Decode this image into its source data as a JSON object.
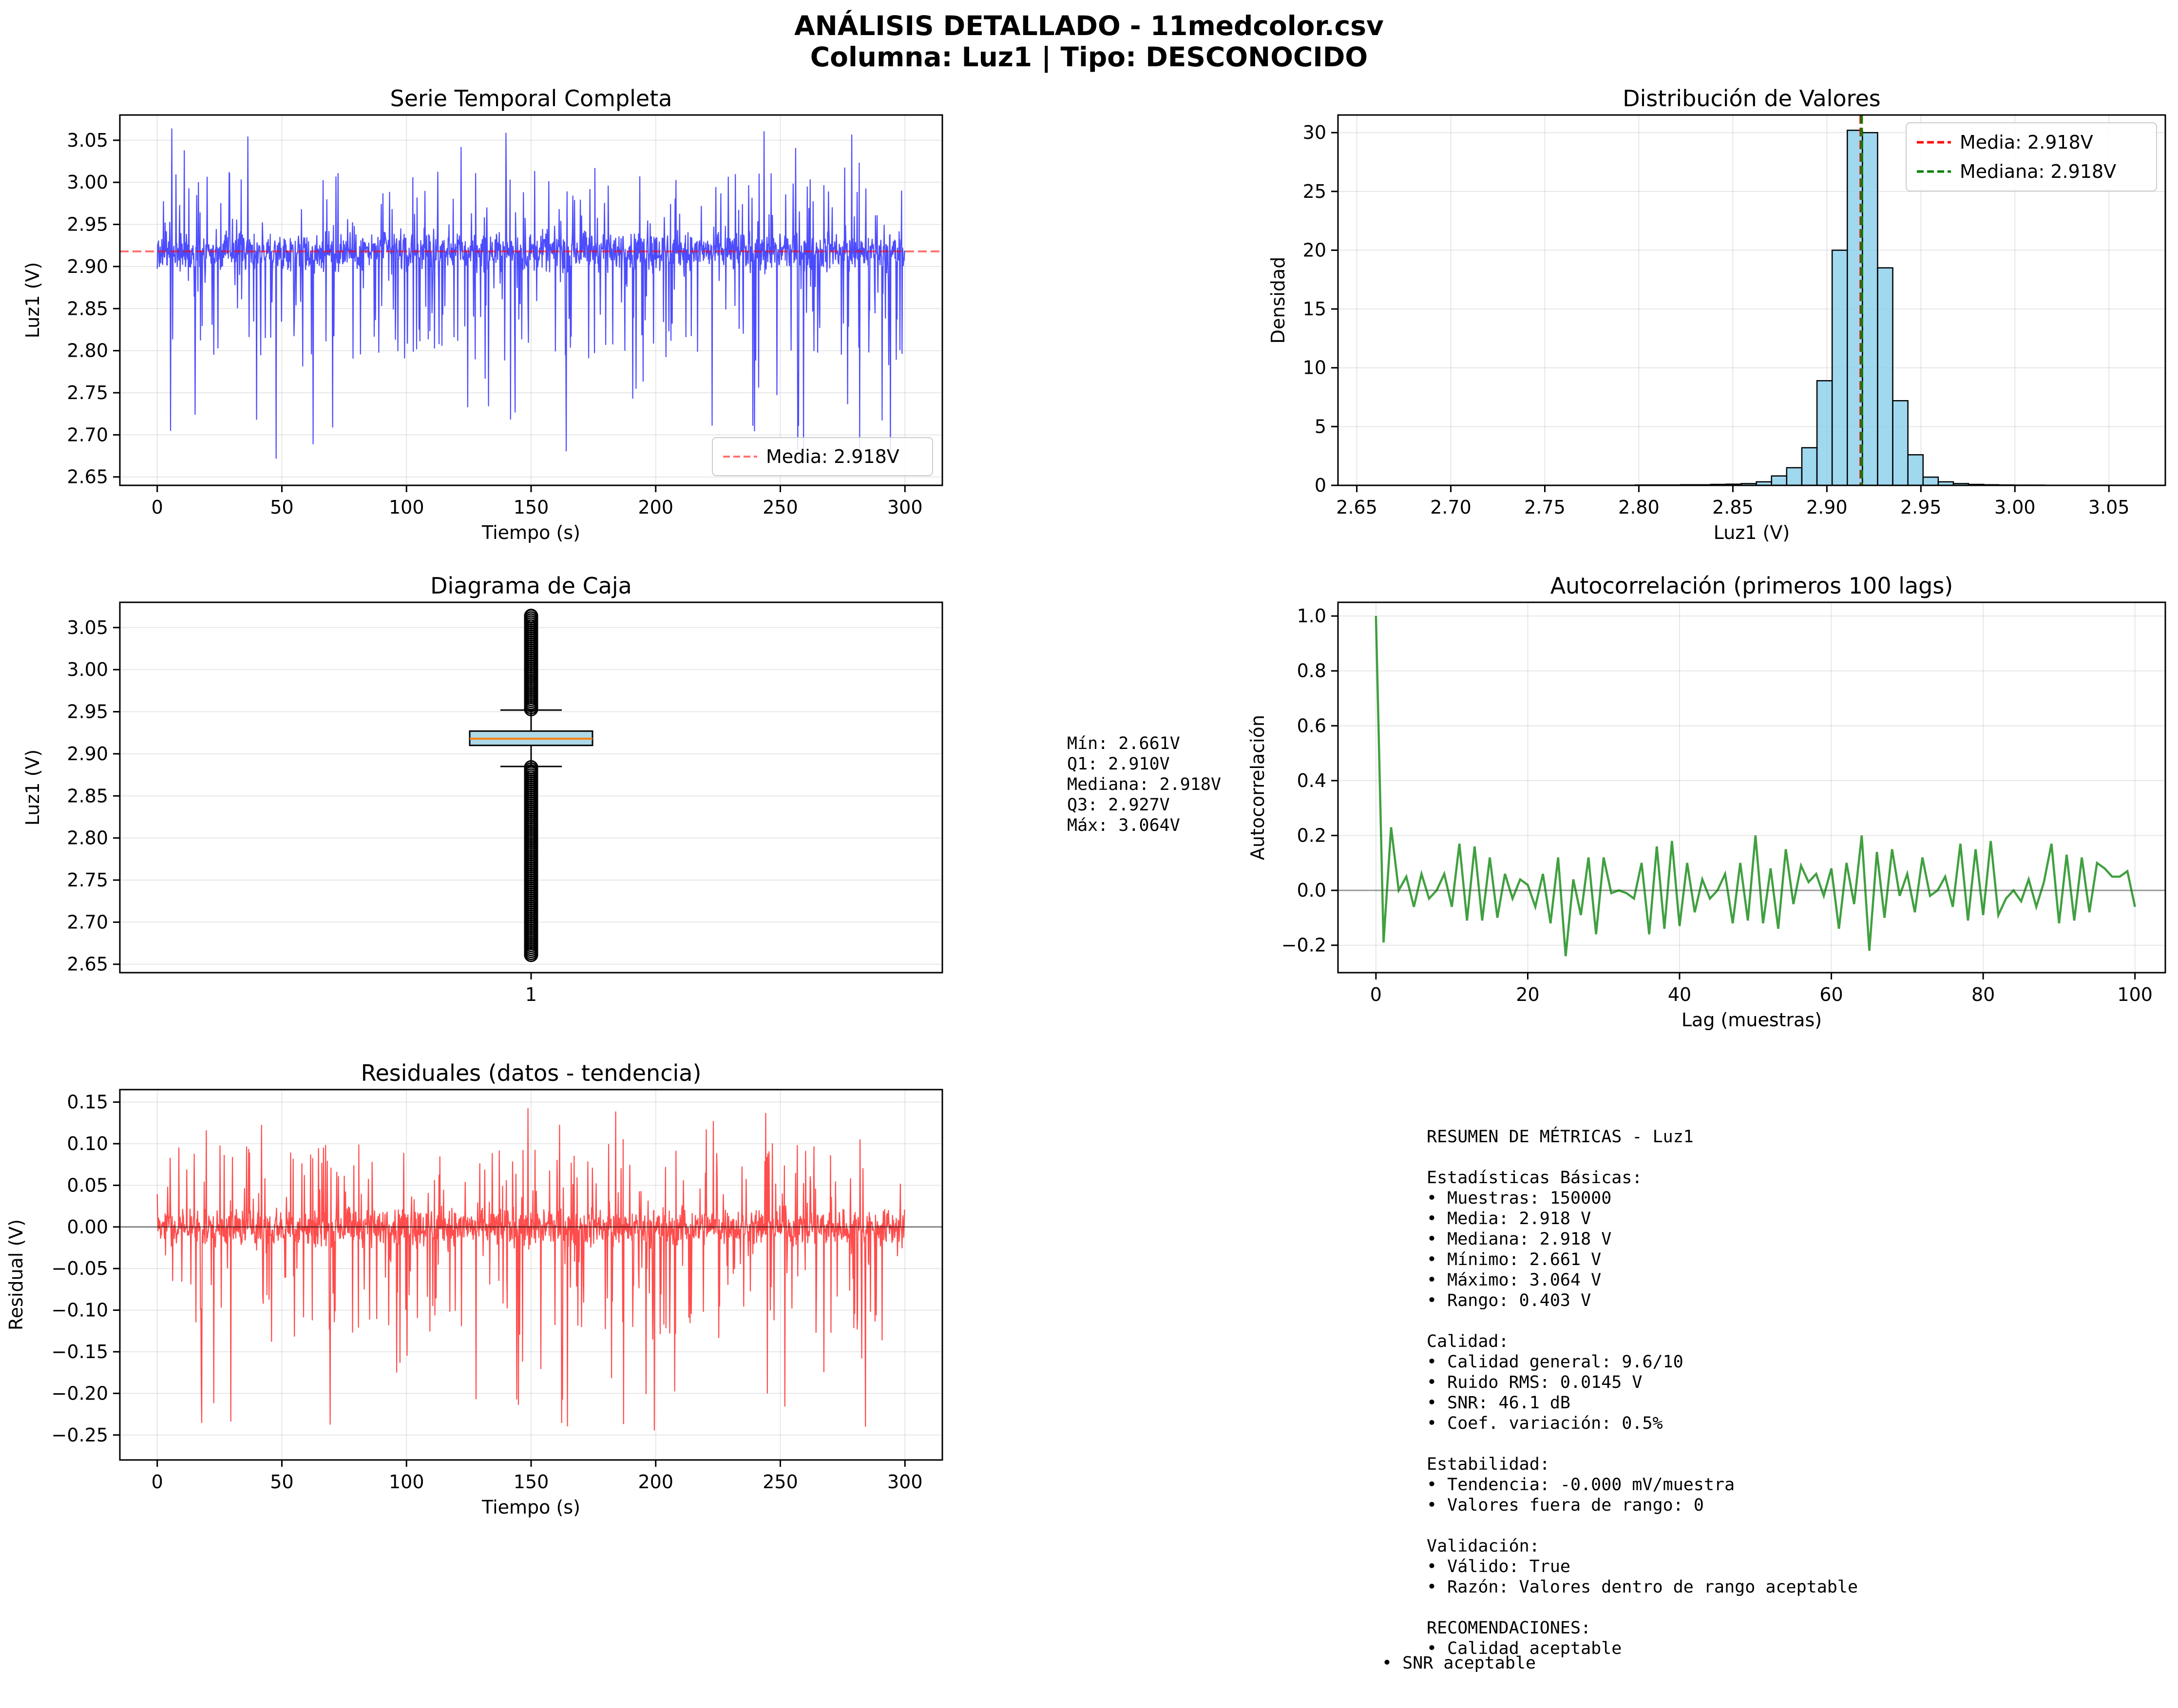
{
  "figure": {
    "title_line1": "ANÁLISIS DETALLADO - 11medcolor.csv",
    "title_line2": "Columna: Luz1 | Tipo: DESCONOCIDO"
  },
  "chart_data": [
    {
      "id": "timeseries",
      "type": "line",
      "title": "Serie Temporal Completa",
      "xlabel": "Tiempo (s)",
      "ylabel": "Luz1 (V)",
      "xlim": [
        -15,
        315
      ],
      "ylim": [
        2.64,
        3.08
      ],
      "xticks": [
        "0",
        "50",
        "100",
        "150",
        "200",
        "250",
        "300"
      ],
      "yticks": [
        "2.65",
        "2.70",
        "2.75",
        "2.80",
        "2.85",
        "2.90",
        "2.95",
        "3.00",
        "3.05"
      ],
      "grid": true,
      "series": [
        {
          "name": "Luz1",
          "color": "#0000ff",
          "summary": {
            "samples": 150000,
            "t_start": 0,
            "t_end": 300,
            "mean": 2.918,
            "min": 2.661,
            "max": 3.064,
            "q1": 2.91,
            "q3": 2.927
          }
        },
        {
          "name": "Media: 2.918V",
          "color": "#ff0000",
          "style": "dashed",
          "y": 2.918
        }
      ],
      "legend": {
        "position": "lower-right",
        "entries": [
          "Media: 2.918V"
        ]
      }
    },
    {
      "id": "histogram",
      "type": "bar",
      "title": "Distribución de Valores",
      "xlabel": "Luz1 (V)",
      "ylabel": "Densidad",
      "xlim": [
        2.64,
        3.08
      ],
      "ylim": [
        0,
        31.5
      ],
      "xticks": [
        "2.65",
        "2.70",
        "2.75",
        "2.80",
        "2.85",
        "2.90",
        "2.95",
        "3.00",
        "3.05"
      ],
      "yticks": [
        "0",
        "5",
        "10",
        "15",
        "20",
        "25",
        "30"
      ],
      "grid": true,
      "bin_start": 2.661,
      "bin_width": 0.00806,
      "values": [
        0,
        0,
        0,
        0,
        0,
        0,
        0,
        0,
        0,
        0,
        0,
        0,
        0,
        0,
        0,
        0,
        0,
        0.03,
        0.03,
        0.03,
        0.05,
        0.05,
        0.08,
        0.1,
        0.15,
        0.3,
        0.8,
        1.5,
        3.2,
        8.9,
        20.0,
        30.2,
        30.0,
        18.5,
        7.2,
        2.6,
        0.7,
        0.3,
        0.15,
        0.08,
        0.05,
        0.03,
        0.02,
        0.02,
        0.01,
        0.01,
        0.01,
        0.01,
        0.01,
        0.01
      ],
      "bar_color": "#87ceeb",
      "vlines": [
        {
          "name": "Media: 2.918V",
          "x": 2.918,
          "color": "#ff0000"
        },
        {
          "name": "Mediana: 2.918V",
          "x": 2.918,
          "color": "#008000"
        }
      ],
      "legend": {
        "position": "upper-right",
        "entries": [
          "Media: 2.918V",
          "Mediana: 2.918V"
        ]
      }
    },
    {
      "id": "boxplot",
      "type": "box",
      "title": "Diagrama de Caja",
      "ylabel": "Luz1 (V)",
      "ylim": [
        2.64,
        3.08
      ],
      "yticks": [
        "2.65",
        "2.70",
        "2.75",
        "2.80",
        "2.85",
        "2.90",
        "2.95",
        "3.00",
        "3.05"
      ],
      "xticks": [
        "1"
      ],
      "grid": true,
      "box": {
        "min": 2.661,
        "q1": 2.91,
        "median": 2.918,
        "q3": 2.927,
        "max": 3.064,
        "whisker_low": 2.885,
        "whisker_high": 2.952
      }
    },
    {
      "id": "autocorr",
      "type": "line",
      "title": "Autocorrelación (primeros 100 lags)",
      "xlabel": "Lag (muestras)",
      "ylabel": "Autocorrelación",
      "xlim": [
        -5,
        104
      ],
      "ylim": [
        -0.3,
        1.05
      ],
      "xticks": [
        "0",
        "20",
        "40",
        "60",
        "80",
        "100"
      ],
      "yticks": [
        "−0.2",
        "0.0",
        "0.2",
        "0.4",
        "0.6",
        "0.8",
        "1.0"
      ],
      "grid": true,
      "color": "#008000",
      "values": [
        1.0,
        -0.19,
        0.23,
        0.0,
        0.05,
        -0.06,
        0.06,
        -0.03,
        0.0,
        0.06,
        -0.06,
        0.17,
        -0.11,
        0.16,
        -0.11,
        0.12,
        -0.1,
        0.06,
        -0.03,
        0.04,
        0.02,
        -0.06,
        0.06,
        -0.12,
        0.12,
        -0.24,
        0.04,
        -0.09,
        0.12,
        -0.16,
        0.12,
        -0.01,
        0.0,
        -0.01,
        -0.03,
        0.1,
        -0.16,
        0.16,
        -0.14,
        0.18,
        -0.13,
        0.1,
        -0.08,
        0.04,
        -0.03,
        0.0,
        0.06,
        -0.12,
        0.1,
        -0.11,
        0.2,
        -0.12,
        0.08,
        -0.14,
        0.15,
        -0.05,
        0.09,
        0.03,
        0.06,
        -0.02,
        0.08,
        -0.14,
        0.1,
        -0.05,
        0.2,
        -0.22,
        0.14,
        -0.1,
        0.15,
        -0.02,
        0.06,
        -0.08,
        0.12,
        -0.02,
        0.0,
        0.05,
        -0.06,
        0.17,
        -0.11,
        0.15,
        -0.09,
        0.18,
        -0.09,
        -0.03,
        0.0,
        -0.04,
        0.04,
        -0.06,
        0.03,
        0.17,
        -0.12,
        0.13,
        -0.11,
        0.12,
        -0.08,
        0.1,
        0.08,
        0.05,
        0.05,
        0.07,
        -0.06
      ],
      "baseline": 0
    },
    {
      "id": "residuals",
      "type": "line",
      "title": "Residuales (datos - tendencia)",
      "xlabel": "Tiempo (s)",
      "ylabel": "Residual (V)",
      "xlim": [
        -15,
        315
      ],
      "ylim": [
        -0.28,
        0.165
      ],
      "xticks": [
        "0",
        "50",
        "100",
        "150",
        "200",
        "250",
        "300"
      ],
      "yticks": [
        "−0.25",
        "−0.20",
        "−0.15",
        "−0.10",
        "−0.05",
        "0.00",
        "0.05",
        "0.10",
        "0.15"
      ],
      "grid": true,
      "color": "#ff0000",
      "summary": {
        "samples": 150000,
        "t_start": 0,
        "t_end": 300,
        "min": -0.257,
        "max": 0.146
      },
      "baseline": 0
    }
  ],
  "stats_box": {
    "lines": [
      "Mín: 2.661V",
      "Q1: 2.910V",
      "Mediana: 2.918V",
      "Q3: 2.927V",
      "Máx: 3.064V"
    ]
  },
  "summary": {
    "lines": [
      "RESUMEN DE MÉTRICAS - Luz1",
      "",
      "Estadísticas Básicas:",
      "• Muestras: 150000",
      "• Media: 2.918 V",
      "• Mediana: 2.918 V",
      "• Mínimo: 2.661 V",
      "• Máximo: 3.064 V",
      "• Rango: 0.403 V",
      "",
      "Calidad:",
      "• Calidad general: 9.6/10",
      "• Ruido RMS: 0.0145 V",
      "• SNR: 46.1 dB",
      "• Coef. variación: 0.5%",
      "",
      "Estabilidad:",
      "• Tendencia: -0.000 mV/muestra",
      "• Valores fuera de rango: 0",
      "",
      "Validación:",
      "• Válido: True",
      "• Razón: Valores dentro de rango aceptable",
      "",
      "RECOMENDACIONES:",
      "• Calidad aceptable"
    ],
    "last_line": "• SNR aceptable"
  }
}
